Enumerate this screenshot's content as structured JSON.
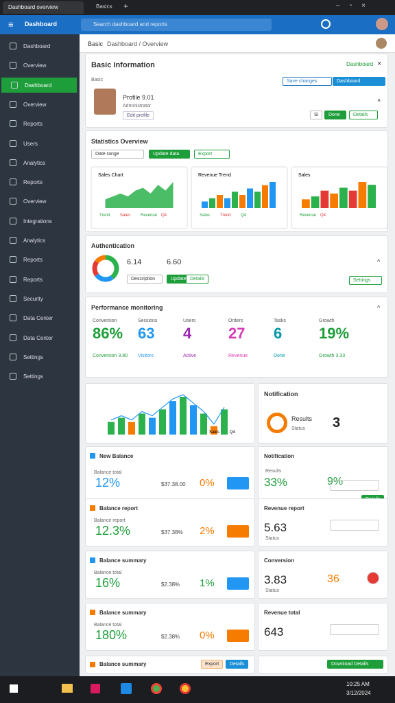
{
  "browser": {
    "tabs": [
      "Dashboard overview",
      "Basics"
    ]
  },
  "topbar": {
    "app": "Dashboard",
    "search": "Search dashboard and reports"
  },
  "sidebar": {
    "items": [
      "Dashboard",
      "Overview",
      "Dashboard",
      "Overview",
      "Reports",
      "Users",
      "Analytics",
      "Reports",
      "Overview",
      "Integrations",
      "Analytics",
      "Reports",
      "Reports",
      "Security",
      "Data Center",
      "Data Center",
      "Settings",
      "Settings"
    ],
    "active": 2
  },
  "breadcrumb": [
    "Basic",
    "Dashboard / Overview"
  ],
  "info": {
    "title": "Basic Information",
    "link": "Dashboard",
    "section": "Basic",
    "name": "Profile 9.01",
    "role": "Administrator",
    "tag": "Edit profile",
    "buttons": [
      "Save changes",
      "Dashboard"
    ],
    "small": [
      "Si",
      "Done",
      "Details"
    ]
  },
  "stats": {
    "title": "Statistics Overview",
    "buttons": [
      "Date range",
      "Update data",
      "Export"
    ],
    "charts": [
      {
        "title": "Sales Chart",
        "labels": [
          "Trend",
          "Sales",
          "Revenue",
          "Q4"
        ],
        "type": "area",
        "color": "#2bb24c",
        "values": [
          3,
          4,
          5,
          4,
          6,
          7,
          5,
          8,
          6,
          9
        ]
      },
      {
        "title": "Revenue Trend",
        "labels": [
          "Sales",
          "Trend",
          "Q4"
        ],
        "type": "bar",
        "colors": [
          "#2196f3",
          "#2bb24c",
          "#f57c00"
        ],
        "values": [
          2,
          3,
          4,
          3,
          5,
          4,
          6,
          5,
          7,
          8
        ]
      },
      {
        "title": "Sales",
        "labels": [
          "Revenue",
          "Q4"
        ],
        "type": "bar",
        "colors": [
          "#f57c00",
          "#2bb24c",
          "#e53935"
        ],
        "values": [
          3,
          4,
          6,
          5,
          7,
          6,
          9,
          8
        ]
      }
    ]
  },
  "auth": {
    "title": "Authentication",
    "values": [
      "6.14",
      "6.60"
    ],
    "buttons": [
      "Description",
      "Update",
      "Details"
    ],
    "settings": "Settings",
    "donut": {
      "values": [
        40,
        25,
        20,
        15
      ],
      "colors": [
        "#2bb24c",
        "#2196f3",
        "#e53935",
        "#f57c00"
      ]
    }
  },
  "perf": {
    "title": "Performance monitoring",
    "items": [
      {
        "label": "Conversion",
        "value": "86%",
        "sub": "Conversion 3.80",
        "color": "#1e9e3a"
      },
      {
        "label": "Sessions",
        "value": "63",
        "sub": "Visitors",
        "color": "#2196f3"
      },
      {
        "label": "Users",
        "value": "4",
        "sub": "Active",
        "color": "#9c27b0"
      },
      {
        "label": "Orders",
        "value": "27",
        "sub": "Revenue",
        "color": "#d63bb5"
      },
      {
        "label": "Tasks",
        "value": "6",
        "sub": "Done",
        "color": "#0097a7"
      },
      {
        "label": "Growth",
        "value": "19%",
        "sub": "Growth 3.33",
        "color": "#1e9e3a"
      }
    ]
  },
  "combo": {
    "values": [
      3,
      4,
      3,
      5,
      4,
      6,
      8,
      9,
      7,
      5,
      2,
      6
    ],
    "colors": [
      "#2bb24c",
      "#2bb24c",
      "#f57c00",
      "#2bb24c",
      "#2196f3",
      "#2bb24c",
      "#2196f3",
      "#2bb24c",
      "#2196f3",
      "#2bb24c",
      "#f57c00",
      "#2bb24c"
    ],
    "labels": [
      "Sales",
      "Q4"
    ]
  },
  "notification": {
    "title": "Notification",
    "label": "Results",
    "sub": "Status",
    "value": "3"
  },
  "left": [
    {
      "title": "New Balance",
      "label": "Balance total",
      "value": "12%",
      "mid": "$37.38.00",
      "pct": "0%",
      "color": "#2196f3",
      "pctColor": "#f57c00"
    },
    {
      "title": "Balance report",
      "label": "Balance report",
      "value": "12.3%",
      "mid": "$37.38%",
      "pct": "2%",
      "color": "#1e9e3a",
      "pctColor": "#f57c00"
    },
    {
      "title": "Balance summary",
      "label": "Balance total",
      "value": "16%",
      "mid": "$2.38%",
      "pct": "1%",
      "color": "#1e9e3a",
      "pctColor": "#1e9e3a"
    },
    {
      "title": "Balance summary",
      "label": "Balance total",
      "value": "180%",
      "mid": "$2.38%",
      "pct": "0%",
      "color": "#1e9e3a",
      "pctColor": "#f57c00"
    }
  ],
  "leftFooter": {
    "title": "Balance summary",
    "buttons": [
      "Export",
      "Details"
    ]
  },
  "right": [
    {
      "title": "Notification",
      "label": "Results",
      "value": "33%",
      "pct": "9%",
      "button": "Details"
    },
    {
      "title": "Revenue report",
      "value": "5.63",
      "sub": "Status"
    },
    {
      "title": "Conversion",
      "value": "3.83",
      "pct": "36",
      "sub": "Status"
    },
    {
      "title": "Revenue total",
      "value": "643"
    }
  ],
  "rightFooter": "Download Details",
  "taskbar": {
    "time": "10:25 AM",
    "date": "3/12/2024"
  }
}
